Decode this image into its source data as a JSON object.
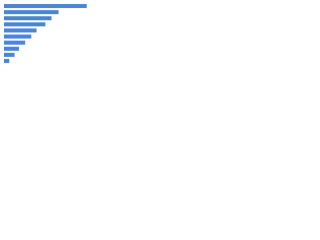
{
  "chart_data": {
    "type": "bar",
    "orientation": "horizontal",
    "categories": [
      null,
      null,
      null,
      null,
      null,
      null,
      null,
      null,
      null,
      null
    ],
    "values": [
      94,
      62,
      54,
      47,
      37,
      31,
      24,
      17,
      12,
      6
    ],
    "color": "#4a86d8",
    "xlim": [
      0,
      100
    ]
  }
}
